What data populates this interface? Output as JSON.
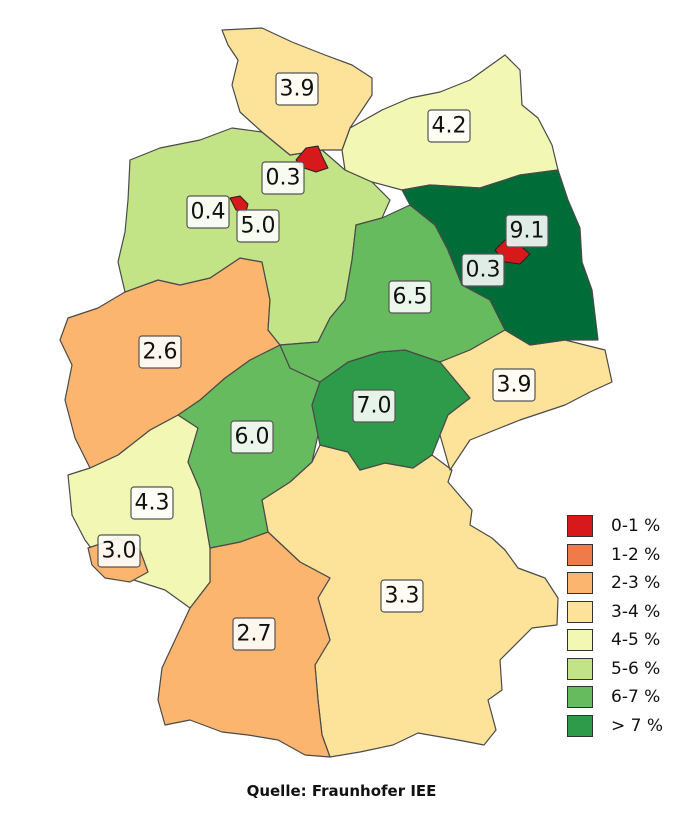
{
  "colors": {
    "0-1": "#d7191c",
    "1-2": "#ef7a4a",
    "2-3": "#fbb56e",
    "3-4": "#fde29a",
    "4-5": "#f2f7b4",
    "5-6": "#c2e386",
    "6-7": "#66bb5f",
    "gt7": "#2e9b4a",
    "gt7_dark": "#006d38"
  },
  "states": [
    {
      "key": "sh",
      "value": "3.9",
      "class": "3-4"
    },
    {
      "key": "mv",
      "value": "4.2",
      "class": "4-5"
    },
    {
      "key": "hh",
      "value": "0.3",
      "class": "0-1"
    },
    {
      "key": "ni",
      "value": "5.0",
      "class": "5-6"
    },
    {
      "key": "hb",
      "value": "0.4",
      "class": "0-1"
    },
    {
      "key": "bb",
      "value": "9.1",
      "class": "gt7_dark"
    },
    {
      "key": "be",
      "value": "0.3",
      "class": "0-1"
    },
    {
      "key": "st",
      "value": "6.5",
      "class": "6-7"
    },
    {
      "key": "nw",
      "value": "2.6",
      "class": "2-3"
    },
    {
      "key": "sn",
      "value": "3.9",
      "class": "3-4"
    },
    {
      "key": "th",
      "value": "7.0",
      "class": "gt7"
    },
    {
      "key": "he",
      "value": "6.0",
      "class": "6-7"
    },
    {
      "key": "rp",
      "value": "4.3",
      "class": "4-5"
    },
    {
      "key": "sl",
      "value": "3.0",
      "class": "2-3"
    },
    {
      "key": "by",
      "value": "3.3",
      "class": "3-4"
    },
    {
      "key": "bw",
      "value": "2.7",
      "class": "2-3"
    }
  ],
  "legend": [
    {
      "label": "0-1 %",
      "color": "#d7191c"
    },
    {
      "label": "1-2 %",
      "color": "#ef7a4a"
    },
    {
      "label": "2-3 %",
      "color": "#fbb56e"
    },
    {
      "label": "3-4 %",
      "color": "#fde29a"
    },
    {
      "label": "4-5 %",
      "color": "#f2f7b4"
    },
    {
      "label": "5-6 %",
      "color": "#c2e386"
    },
    {
      "label": "6-7 %",
      "color": "#66bb5f"
    },
    {
      "label": "> 7 %",
      "color": "#2e9b4a"
    }
  ],
  "source": "Quelle: Fraunhofer IEE"
}
